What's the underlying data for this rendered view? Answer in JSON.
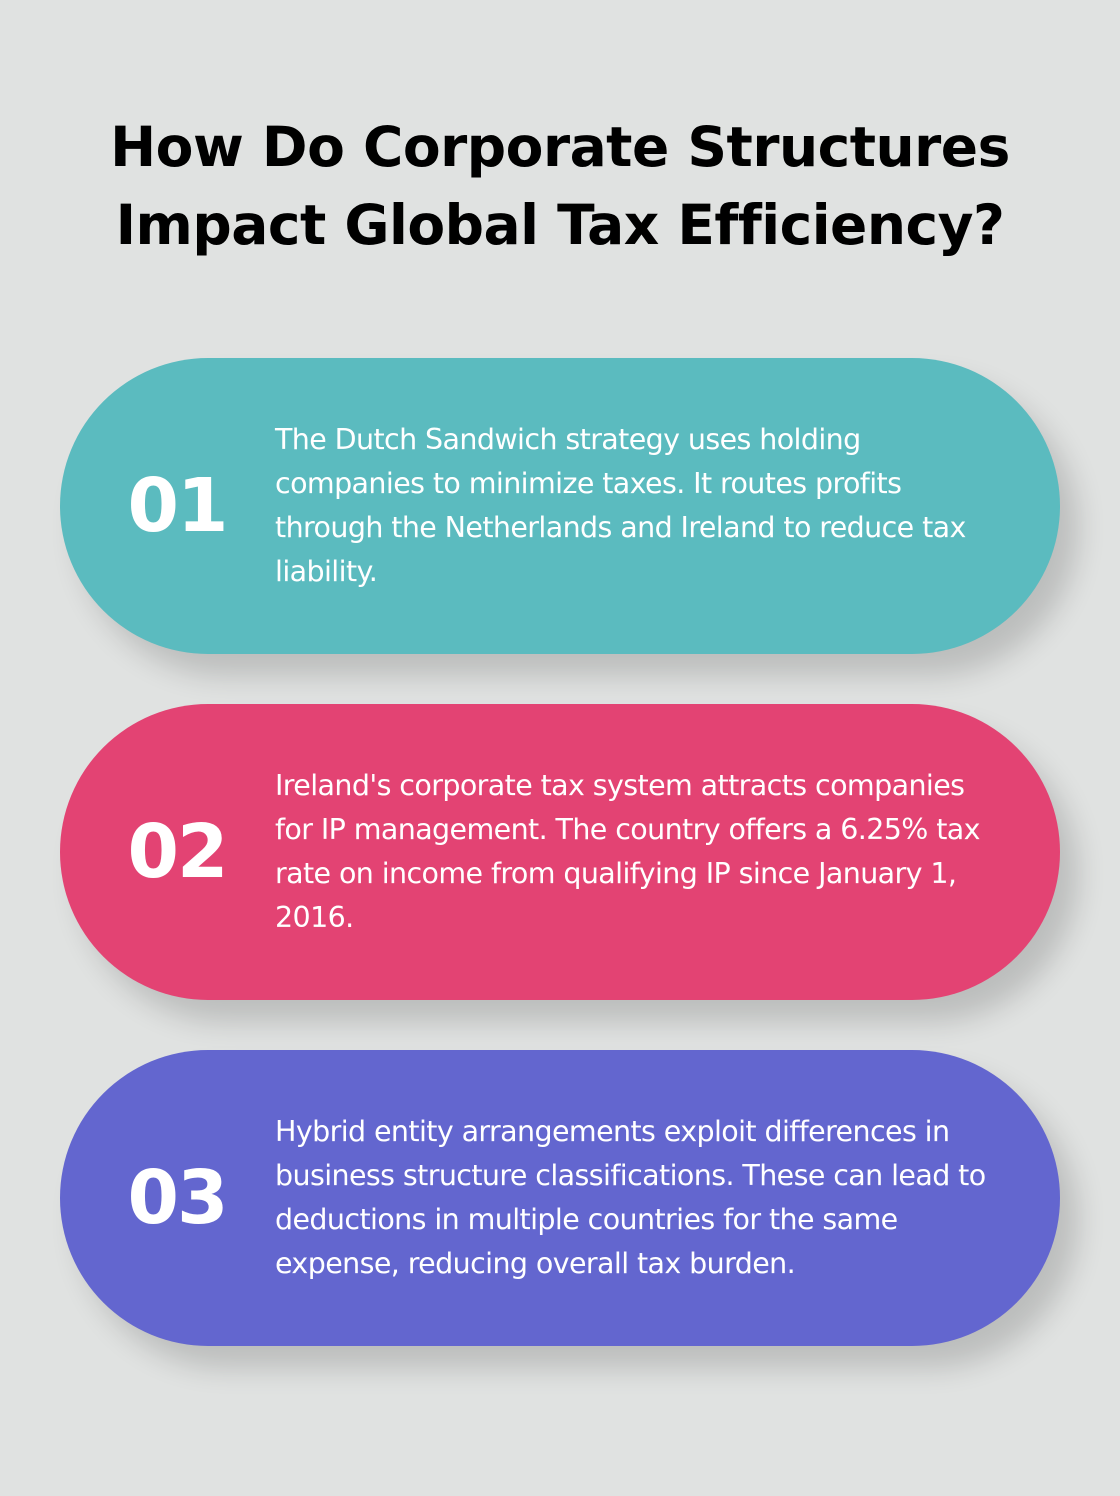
{
  "title": "How Do Corporate Structures Impact Global Tax Efficiency?",
  "colors": {
    "background": "#e0e2e1",
    "card_1": "#5bbbbf",
    "card_2": "#e34373",
    "card_3": "#6366cf",
    "text": "#ffffff"
  },
  "items": [
    {
      "number": "01",
      "text": "The Dutch Sandwich strategy uses holding companies to minimize taxes. It routes profits through the Netherlands and Ireland to reduce tax liability."
    },
    {
      "number": "02",
      "text": "Ireland's corporate tax system attracts companies for IP management. The country offers a 6.25% tax rate on income from qualifying IP since January 1, 2016."
    },
    {
      "number": "03",
      "text": "Hybrid entity arrangements exploit differences in business structure classifications. These can lead to deductions in multiple countries for the same expense, reducing overall tax burden."
    }
  ]
}
